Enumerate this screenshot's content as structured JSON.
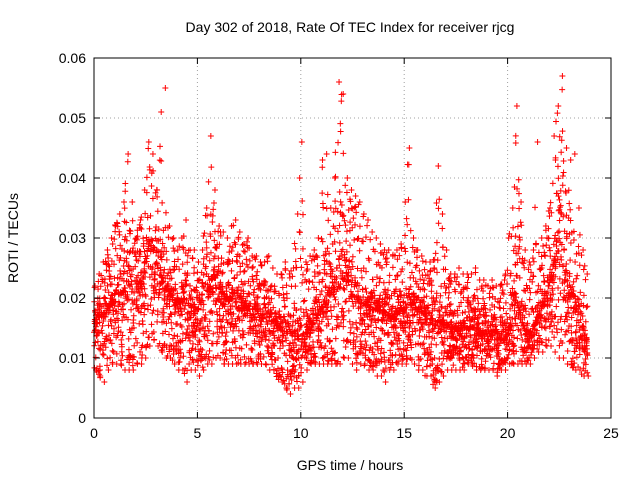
{
  "chart_data": {
    "type": "scatter",
    "title": "Day 302 of 2018, Rate Of TEC Index for receiver rjcg",
    "xlabel": "GPS time / hours",
    "ylabel": "ROTI / TECUs",
    "xlim": [
      0,
      25
    ],
    "ylim": [
      0,
      0.06
    ],
    "x_ticks": [
      "0",
      "5",
      "10",
      "15",
      "20",
      "25"
    ],
    "y_ticks": [
      "0",
      "0.01",
      "0.02",
      "0.03",
      "0.04",
      "0.05",
      "0.06"
    ],
    "grid": true,
    "marker": "+",
    "color": "#ff0000",
    "series": [
      {
        "name": "ROTI",
        "x": [
          0.0,
          0.2,
          0.4,
          0.6,
          0.8,
          1.0,
          1.2,
          1.4,
          1.6,
          1.8,
          2.0,
          2.2,
          2.4,
          2.6,
          2.8,
          3.0,
          3.2,
          3.4,
          3.6,
          3.8,
          4.0,
          4.2,
          4.4,
          4.6,
          4.8,
          5.0,
          5.2,
          5.4,
          5.6,
          5.8,
          6.0,
          6.2,
          6.4,
          6.6,
          6.8,
          7.0,
          7.2,
          7.4,
          7.6,
          7.8,
          8.0,
          8.2,
          8.4,
          8.6,
          8.8,
          9.0,
          9.2,
          9.4,
          9.6,
          9.8,
          10.0,
          10.2,
          10.4,
          10.6,
          10.8,
          11.0,
          11.2,
          11.4,
          11.6,
          11.8,
          12.0,
          12.2,
          12.4,
          12.6,
          12.8,
          13.0,
          13.2,
          13.4,
          13.6,
          13.8,
          14.0,
          14.2,
          14.4,
          14.6,
          14.8,
          15.0,
          15.2,
          15.4,
          15.6,
          15.8,
          16.0,
          16.2,
          16.4,
          16.6,
          16.8,
          17.0,
          17.2,
          17.4,
          17.6,
          17.8,
          18.0,
          18.2,
          18.4,
          18.6,
          18.8,
          19.0,
          19.2,
          19.4,
          19.6,
          19.8,
          20.0,
          20.2,
          20.4,
          20.6,
          20.8,
          21.0,
          21.2,
          21.4,
          21.6,
          21.8,
          22.0,
          22.2,
          22.4,
          22.6,
          22.8,
          23.0,
          23.2,
          23.4,
          23.6,
          23.8
        ],
        "y_median": [
          0.015,
          0.016,
          0.017,
          0.018,
          0.019,
          0.02,
          0.021,
          0.021,
          0.022,
          0.022,
          0.02,
          0.021,
          0.024,
          0.028,
          0.03,
          0.026,
          0.024,
          0.022,
          0.021,
          0.02,
          0.019,
          0.019,
          0.02,
          0.019,
          0.018,
          0.018,
          0.019,
          0.02,
          0.022,
          0.024,
          0.022,
          0.021,
          0.02,
          0.02,
          0.021,
          0.02,
          0.019,
          0.019,
          0.018,
          0.018,
          0.017,
          0.017,
          0.017,
          0.016,
          0.016,
          0.015,
          0.015,
          0.015,
          0.014,
          0.014,
          0.013,
          0.014,
          0.015,
          0.016,
          0.017,
          0.018,
          0.019,
          0.02,
          0.022,
          0.026,
          0.028,
          0.024,
          0.021,
          0.02,
          0.02,
          0.019,
          0.019,
          0.018,
          0.018,
          0.018,
          0.018,
          0.017,
          0.017,
          0.017,
          0.018,
          0.018,
          0.02,
          0.019,
          0.018,
          0.018,
          0.017,
          0.017,
          0.016,
          0.016,
          0.016,
          0.016,
          0.015,
          0.015,
          0.015,
          0.015,
          0.015,
          0.015,
          0.015,
          0.014,
          0.014,
          0.014,
          0.014,
          0.013,
          0.013,
          0.013,
          0.014,
          0.016,
          0.02,
          0.018,
          0.015,
          0.014,
          0.015,
          0.016,
          0.018,
          0.02,
          0.022,
          0.025,
          0.028,
          0.026,
          0.024,
          0.022,
          0.02,
          0.018,
          0.015,
          0.013
        ],
        "y_max": [
          0.022,
          0.024,
          0.026,
          0.028,
          0.03,
          0.032,
          0.034,
          0.036,
          0.044,
          0.036,
          0.03,
          0.033,
          0.038,
          0.046,
          0.044,
          0.038,
          0.051,
          0.055,
          0.032,
          0.03,
          0.028,
          0.03,
          0.033,
          0.028,
          0.028,
          0.026,
          0.028,
          0.035,
          0.047,
          0.038,
          0.032,
          0.031,
          0.03,
          0.032,
          0.033,
          0.031,
          0.029,
          0.03,
          0.027,
          0.027,
          0.026,
          0.026,
          0.027,
          0.025,
          0.024,
          0.024,
          0.026,
          0.024,
          0.025,
          0.034,
          0.046,
          0.026,
          0.027,
          0.028,
          0.03,
          0.043,
          0.044,
          0.035,
          0.04,
          0.056,
          0.054,
          0.04,
          0.038,
          0.037,
          0.036,
          0.034,
          0.033,
          0.031,
          0.03,
          0.029,
          0.028,
          0.028,
          0.027,
          0.028,
          0.029,
          0.036,
          0.045,
          0.03,
          0.028,
          0.027,
          0.026,
          0.026,
          0.025,
          0.042,
          0.034,
          0.028,
          0.024,
          0.024,
          0.025,
          0.024,
          0.024,
          0.024,
          0.025,
          0.023,
          0.023,
          0.022,
          0.023,
          0.022,
          0.022,
          0.023,
          0.03,
          0.035,
          0.052,
          0.036,
          0.028,
          0.026,
          0.028,
          0.046,
          0.03,
          0.032,
          0.035,
          0.047,
          0.052,
          0.057,
          0.045,
          0.043,
          0.044,
          0.035,
          0.028,
          0.024
        ],
        "y_min": [
          0.008,
          0.007,
          0.006,
          0.008,
          0.009,
          0.009,
          0.009,
          0.008,
          0.008,
          0.008,
          0.009,
          0.009,
          0.01,
          0.012,
          0.013,
          0.012,
          0.011,
          0.01,
          0.01,
          0.009,
          0.008,
          0.008,
          0.006,
          0.008,
          0.008,
          0.007,
          0.008,
          0.009,
          0.009,
          0.01,
          0.01,
          0.009,
          0.009,
          0.009,
          0.009,
          0.009,
          0.009,
          0.009,
          0.009,
          0.009,
          0.009,
          0.009,
          0.008,
          0.008,
          0.007,
          0.006,
          0.005,
          0.004,
          0.005,
          0.005,
          0.006,
          0.008,
          0.009,
          0.009,
          0.009,
          0.009,
          0.009,
          0.009,
          0.009,
          0.009,
          0.01,
          0.01,
          0.009,
          0.008,
          0.009,
          0.009,
          0.008,
          0.008,
          0.007,
          0.007,
          0.006,
          0.008,
          0.008,
          0.009,
          0.009,
          0.009,
          0.01,
          0.009,
          0.008,
          0.008,
          0.007,
          0.007,
          0.005,
          0.006,
          0.007,
          0.008,
          0.008,
          0.008,
          0.008,
          0.008,
          0.009,
          0.009,
          0.008,
          0.008,
          0.008,
          0.008,
          0.008,
          0.007,
          0.008,
          0.008,
          0.009,
          0.009,
          0.009,
          0.009,
          0.009,
          0.009,
          0.01,
          0.011,
          0.011,
          0.012,
          0.012,
          0.011,
          0.01,
          0.01,
          0.009,
          0.009,
          0.008,
          0.008,
          0.007,
          0.007
        ]
      }
    ]
  }
}
